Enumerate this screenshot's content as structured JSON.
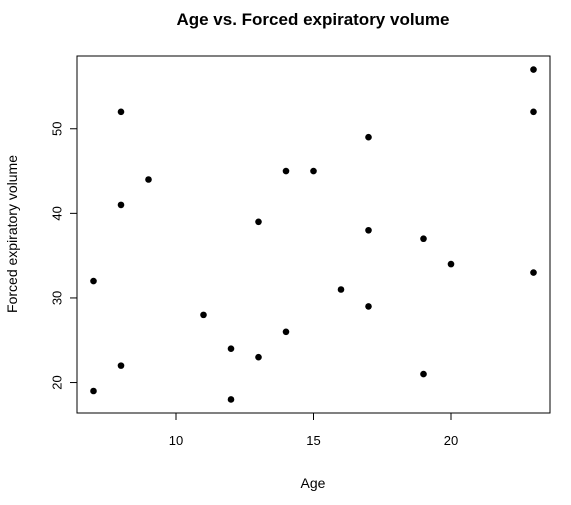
{
  "chart_data": {
    "type": "scatter",
    "title": "Age vs. Forced expiratory volume",
    "xlabel": "Age",
    "ylabel": "Forced expiratory volume",
    "xlim": [
      6.4,
      23.6
    ],
    "ylim": [
      16.4,
      58.6
    ],
    "xticks": [
      10,
      15,
      20
    ],
    "yticks": [
      20,
      30,
      40,
      50
    ],
    "grid": false,
    "marker": "filled-circle",
    "color": "#000000",
    "points": [
      {
        "x": 7,
        "y": 19
      },
      {
        "x": 7,
        "y": 32
      },
      {
        "x": 8,
        "y": 22
      },
      {
        "x": 8,
        "y": 41
      },
      {
        "x": 8,
        "y": 52
      },
      {
        "x": 9,
        "y": 44
      },
      {
        "x": 11,
        "y": 28
      },
      {
        "x": 12,
        "y": 18
      },
      {
        "x": 12,
        "y": 24
      },
      {
        "x": 13,
        "y": 23
      },
      {
        "x": 13,
        "y": 39
      },
      {
        "x": 14,
        "y": 26
      },
      {
        "x": 14,
        "y": 45
      },
      {
        "x": 15,
        "y": 45
      },
      {
        "x": 16,
        "y": 31
      },
      {
        "x": 17,
        "y": 29
      },
      {
        "x": 17,
        "y": 38
      },
      {
        "x": 17,
        "y": 49
      },
      {
        "x": 19,
        "y": 21
      },
      {
        "x": 19,
        "y": 37
      },
      {
        "x": 20,
        "y": 34
      },
      {
        "x": 23,
        "y": 33
      },
      {
        "x": 23,
        "y": 52
      },
      {
        "x": 23,
        "y": 57
      }
    ]
  }
}
